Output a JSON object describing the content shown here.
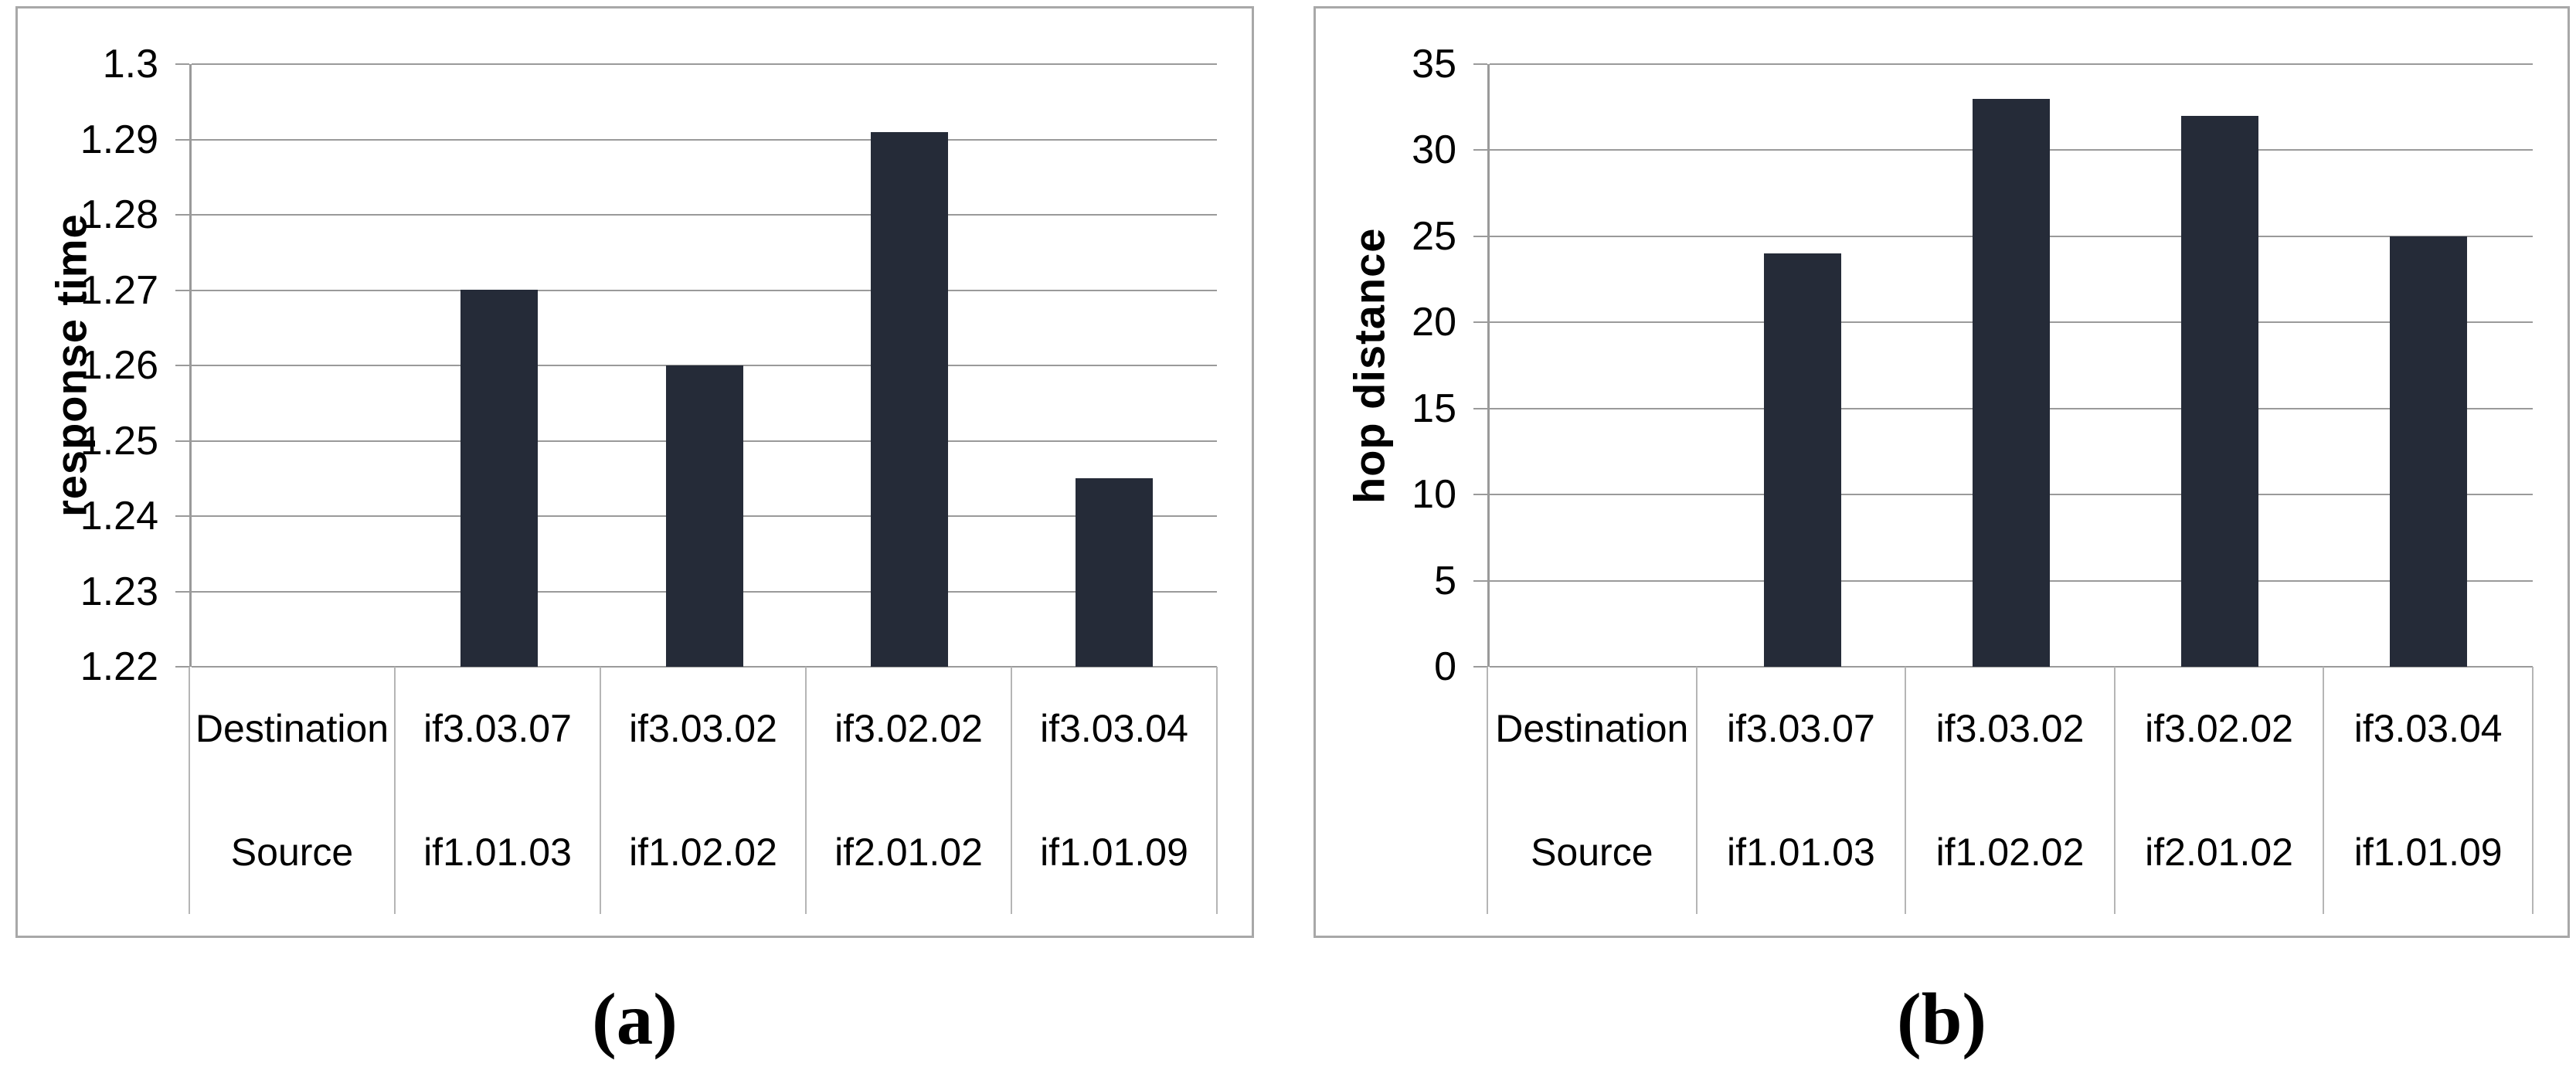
{
  "figure": {
    "panel_count": 2,
    "background": "#ffffff",
    "panel_border_color": "#a8a8a8",
    "gridline_color": "#9a9a9a",
    "table_divider_color": "#b5b5b5",
    "text_color": "#000000"
  },
  "chart_data": [
    {
      "type": "bar",
      "caption": "(a)",
      "title": "",
      "xlabel": "",
      "ylabel": "response time",
      "ylim": [
        1.22,
        1.3
      ],
      "grid": true,
      "legend_position": "none",
      "bar_color": "#252b38",
      "yticks": [
        {
          "v": 1.3,
          "label": "1.3"
        },
        {
          "v": 1.29,
          "label": "1.29"
        },
        {
          "v": 1.28,
          "label": "1.28"
        },
        {
          "v": 1.27,
          "label": "1.27"
        },
        {
          "v": 1.26,
          "label": "1.26"
        },
        {
          "v": 1.25,
          "label": "1.25"
        },
        {
          "v": 1.24,
          "label": "1.24"
        },
        {
          "v": 1.23,
          "label": "1.23"
        },
        {
          "v": 1.22,
          "label": "1.22"
        }
      ],
      "categories": [
        "if3.03.07",
        "if3.03.02",
        "if3.02.02",
        "if3.03.04"
      ],
      "values": [
        1.27,
        1.26,
        1.291,
        1.245
      ],
      "table_rows": [
        {
          "label": "Destination",
          "values": [
            "if3.03.07",
            "if3.03.02",
            "if3.02.02",
            "if3.03.04"
          ]
        },
        {
          "label": "Source",
          "values": [
            "if1.01.03",
            "if1.02.02",
            "if2.01.02",
            "if1.01.09"
          ]
        }
      ]
    },
    {
      "type": "bar",
      "caption": "(b)",
      "title": "",
      "xlabel": "",
      "ylabel": "hop distance",
      "ylim": [
        0,
        35
      ],
      "grid": true,
      "legend_position": "none",
      "bar_color": "#252b38",
      "yticks": [
        {
          "v": 35,
          "label": "35"
        },
        {
          "v": 30,
          "label": "30"
        },
        {
          "v": 25,
          "label": "25"
        },
        {
          "v": 20,
          "label": "20"
        },
        {
          "v": 15,
          "label": "15"
        },
        {
          "v": 10,
          "label": "10"
        },
        {
          "v": 5,
          "label": "5"
        },
        {
          "v": 0,
          "label": "0"
        }
      ],
      "categories": [
        "if3.03.07",
        "if3.03.02",
        "if3.02.02",
        "if3.03.04"
      ],
      "values": [
        24,
        33,
        32,
        25
      ],
      "table_rows": [
        {
          "label": "Destination",
          "values": [
            "if3.03.07",
            "if3.03.02",
            "if3.02.02",
            "if3.03.04"
          ]
        },
        {
          "label": "Source",
          "values": [
            "if1.01.03",
            "if1.02.02",
            "if2.01.02",
            "if1.01.09"
          ]
        }
      ]
    }
  ]
}
